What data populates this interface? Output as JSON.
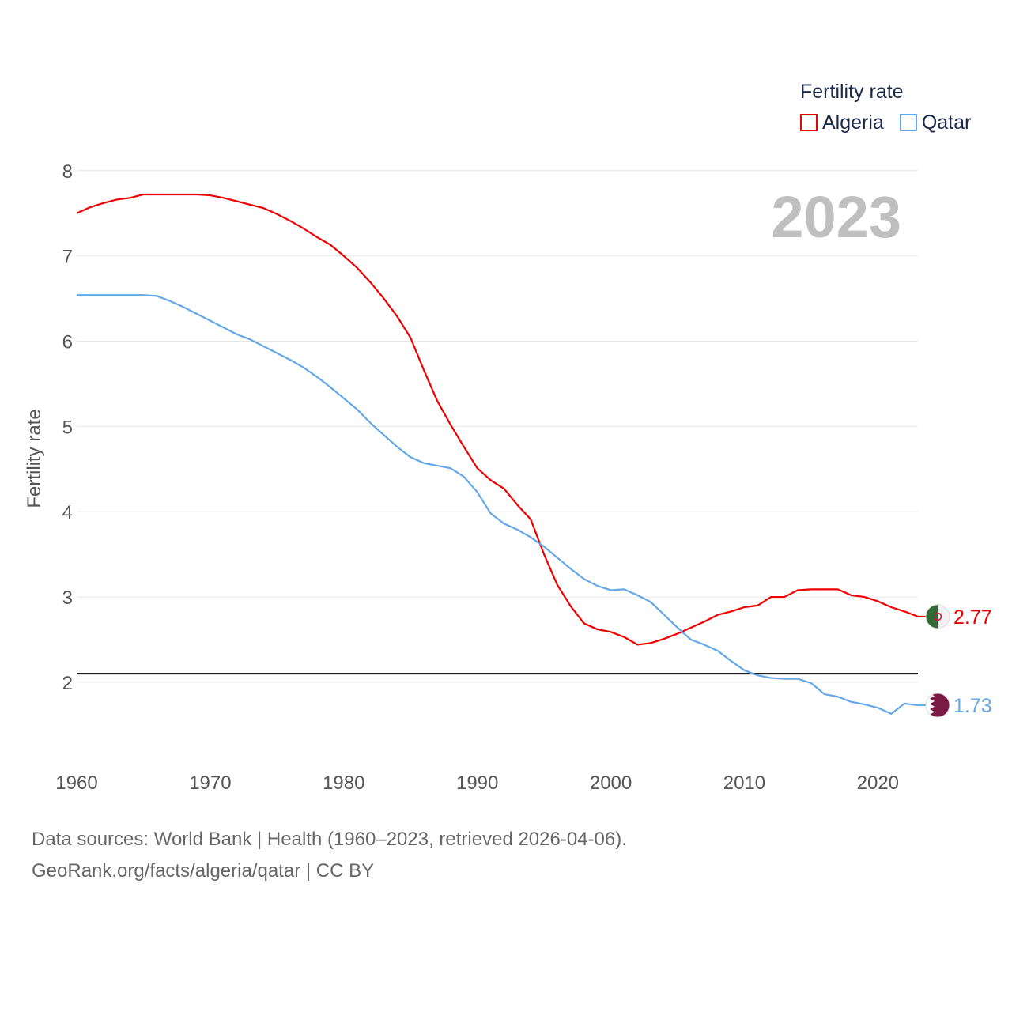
{
  "chart_data": {
    "type": "line",
    "title": "",
    "ylabel": "Fertility rate",
    "xlabel": "",
    "xlim": [
      1960,
      2023
    ],
    "ylim": [
      1.1,
      8.1
    ],
    "x_ticks": [
      1960,
      1970,
      1980,
      1990,
      2000,
      2010,
      2020
    ],
    "y_ticks": [
      2,
      3,
      4,
      5,
      6,
      7,
      8
    ],
    "grid": true,
    "reference_line": {
      "y": 2.1,
      "color": "#000000"
    },
    "legend": {
      "title": "Fertility rate",
      "position": "top-right"
    },
    "watermark_year": "2023",
    "series": [
      {
        "name": "Algeria",
        "color": "#ee0000",
        "end_label": "2.77",
        "flag": "algeria-flag",
        "x": [
          1960,
          1961,
          1962,
          1963,
          1964,
          1965,
          1966,
          1967,
          1968,
          1969,
          1970,
          1971,
          1972,
          1973,
          1974,
          1975,
          1976,
          1977,
          1978,
          1979,
          1980,
          1981,
          1982,
          1983,
          1984,
          1985,
          1986,
          1987,
          1988,
          1989,
          1990,
          1991,
          1992,
          1993,
          1994,
          1995,
          1996,
          1997,
          1998,
          1999,
          2000,
          2001,
          2002,
          2003,
          2004,
          2005,
          2006,
          2007,
          2008,
          2009,
          2010,
          2011,
          2012,
          2013,
          2014,
          2015,
          2016,
          2017,
          2018,
          2019,
          2020,
          2021,
          2022,
          2023
        ],
        "values": [
          7.5,
          7.57,
          7.62,
          7.66,
          7.68,
          7.72,
          7.72,
          7.72,
          7.72,
          7.72,
          7.71,
          7.68,
          7.64,
          7.6,
          7.56,
          7.49,
          7.41,
          7.32,
          7.22,
          7.13,
          7.0,
          6.86,
          6.69,
          6.5,
          6.29,
          6.04,
          5.66,
          5.3,
          5.02,
          4.76,
          4.51,
          4.37,
          4.27,
          4.08,
          3.91,
          3.5,
          3.14,
          2.89,
          2.69,
          2.62,
          2.59,
          2.53,
          2.44,
          2.46,
          2.51,
          2.57,
          2.64,
          2.71,
          2.79,
          2.83,
          2.88,
          2.9,
          3.0,
          3.0,
          3.08,
          3.09,
          3.09,
          3.09,
          3.02,
          3.0,
          2.95,
          2.88,
          2.83,
          2.77
        ]
      },
      {
        "name": "Qatar",
        "color": "#64a8e8",
        "end_label": "1.73",
        "flag": "qatar-flag",
        "x": [
          1960,
          1961,
          1962,
          1963,
          1964,
          1965,
          1966,
          1967,
          1968,
          1969,
          1970,
          1971,
          1972,
          1973,
          1974,
          1975,
          1976,
          1977,
          1978,
          1979,
          1980,
          1981,
          1982,
          1983,
          1984,
          1985,
          1986,
          1987,
          1988,
          1989,
          1990,
          1991,
          1992,
          1993,
          1994,
          1995,
          1996,
          1997,
          1998,
          1999,
          2000,
          2001,
          2002,
          2003,
          2004,
          2005,
          2006,
          2007,
          2008,
          2009,
          2010,
          2011,
          2012,
          2013,
          2014,
          2015,
          2016,
          2017,
          2018,
          2019,
          2020,
          2021,
          2022,
          2023
        ],
        "values": [
          6.54,
          6.54,
          6.54,
          6.54,
          6.54,
          6.54,
          6.53,
          6.47,
          6.4,
          6.32,
          6.24,
          6.16,
          6.08,
          6.02,
          5.94,
          5.86,
          5.78,
          5.69,
          5.58,
          5.46,
          5.33,
          5.2,
          5.04,
          4.9,
          4.76,
          4.64,
          4.57,
          4.54,
          4.51,
          4.41,
          4.23,
          3.98,
          3.86,
          3.79,
          3.7,
          3.59,
          3.46,
          3.33,
          3.21,
          3.13,
          3.08,
          3.09,
          3.02,
          2.94,
          2.79,
          2.64,
          2.5,
          2.44,
          2.37,
          2.25,
          2.14,
          2.08,
          2.05,
          2.04,
          2.04,
          1.99,
          1.86,
          1.83,
          1.77,
          1.74,
          1.7,
          1.63,
          1.75,
          1.73
        ]
      }
    ]
  },
  "footer": {
    "line1": "Data sources: World Bank | Health (1960–2023, retrieved 2026-04-06).",
    "line2": "GeoRank.org/facts/algeria/qatar | CC BY"
  }
}
